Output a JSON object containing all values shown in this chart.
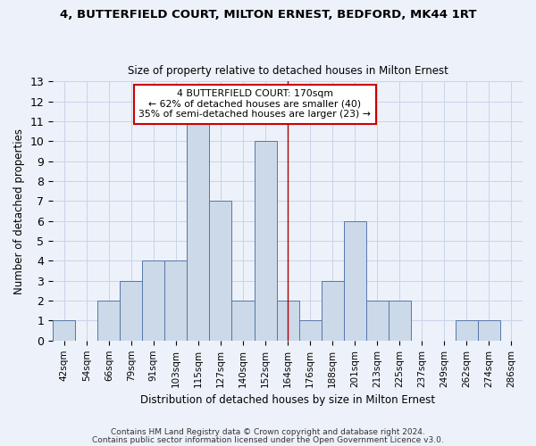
{
  "title1": "4, BUTTERFIELD COURT, MILTON ERNEST, BEDFORD, MK44 1RT",
  "title2": "Size of property relative to detached houses in Milton Ernest",
  "xlabel": "Distribution of detached houses by size in Milton Ernest",
  "ylabel": "Number of detached properties",
  "bar_labels": [
    "42sqm",
    "54sqm",
    "66sqm",
    "79sqm",
    "91sqm",
    "103sqm",
    "115sqm",
    "127sqm",
    "140sqm",
    "152sqm",
    "164sqm",
    "176sqm",
    "188sqm",
    "201sqm",
    "213sqm",
    "225sqm",
    "237sqm",
    "249sqm",
    "262sqm",
    "274sqm",
    "286sqm"
  ],
  "bar_values": [
    1,
    0,
    2,
    3,
    4,
    4,
    11,
    7,
    2,
    10,
    2,
    1,
    3,
    6,
    2,
    2,
    0,
    0,
    1,
    1,
    0
  ],
  "bar_color": "#ccd9e8",
  "bar_edge_color": "#5577aa",
  "highlight_index": 10,
  "highlight_line_color": "#aa0000",
  "annotation_text": "4 BUTTERFIELD COURT: 170sqm\n← 62% of detached houses are smaller (40)\n35% of semi-detached houses are larger (23) →",
  "annotation_box_color": "#ffffff",
  "annotation_edge_color": "#cc0000",
  "ylim": [
    0,
    13
  ],
  "yticks": [
    0,
    1,
    2,
    3,
    4,
    5,
    6,
    7,
    8,
    9,
    10,
    11,
    12,
    13
  ],
  "footer1": "Contains HM Land Registry data © Crown copyright and database right 2024.",
  "footer2": "Contains public sector information licensed under the Open Government Licence v3.0.",
  "grid_color": "#c8d4e8",
  "background_color": "#edf2fa"
}
